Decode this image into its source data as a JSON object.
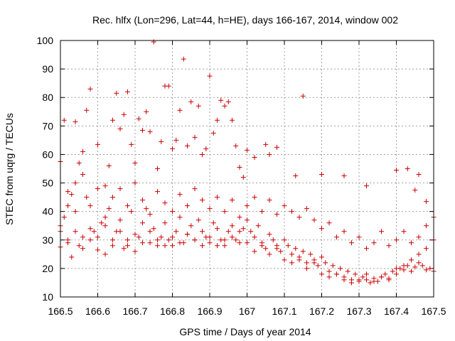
{
  "chart_data": {
    "type": "scatter",
    "title": "Rec. hlfx (Lon=296, Lat=44, h=HE), days 166-167, 2014, window 002",
    "xlabel": "GPS time / Days of year 2014",
    "ylabel": "STEC from uqrg / TECUs",
    "xlim": [
      166.5,
      167.5
    ],
    "ylim": [
      10,
      100
    ],
    "xticks": [
      166.5,
      166.6,
      166.7,
      166.8,
      166.9,
      167,
      167.1,
      167.2,
      167.3,
      167.4,
      167.5
    ],
    "xtick_labels": [
      "166.5",
      "166.6",
      "166.7",
      "166.8",
      "166.9",
      "167",
      "167.1",
      "167.2",
      "167.3",
      "167.4",
      "167.5"
    ],
    "yticks": [
      10,
      20,
      30,
      40,
      50,
      60,
      70,
      80,
      90,
      100
    ],
    "ytick_labels": [
      "10",
      "20",
      "30",
      "40",
      "50",
      "60",
      "70",
      "80",
      "90",
      "100"
    ],
    "grid": true,
    "marker": "plus",
    "color": "#cc0000",
    "series": [
      {
        "points": [
          [
            166.5,
            57.5
          ],
          [
            166.51,
            72
          ],
          [
            166.52,
            47
          ],
          [
            166.53,
            46
          ],
          [
            166.54,
            71.5
          ],
          [
            166.55,
            57
          ],
          [
            166.56,
            61
          ],
          [
            166.57,
            75.5
          ],
          [
            166.58,
            83
          ],
          [
            166.6,
            63.5
          ],
          [
            166.62,
            49
          ],
          [
            166.63,
            56
          ],
          [
            166.64,
            72
          ],
          [
            166.65,
            81.5
          ],
          [
            166.66,
            69
          ],
          [
            166.67,
            74
          ],
          [
            166.68,
            82
          ],
          [
            166.69,
            63.5
          ],
          [
            166.7,
            57
          ],
          [
            166.71,
            72.5
          ],
          [
            166.72,
            68.5
          ],
          [
            166.73,
            75
          ],
          [
            166.74,
            68
          ],
          [
            166.75,
            99.5
          ],
          [
            166.76,
            55
          ],
          [
            166.77,
            64.5
          ],
          [
            166.78,
            84
          ],
          [
            166.79,
            84
          ],
          [
            166.8,
            62
          ],
          [
            166.81,
            65
          ],
          [
            166.82,
            75.5
          ],
          [
            166.83,
            93.5
          ],
          [
            166.84,
            63
          ],
          [
            166.85,
            78.5
          ],
          [
            166.86,
            66
          ],
          [
            166.87,
            77
          ],
          [
            166.88,
            60
          ],
          [
            166.89,
            62
          ],
          [
            166.9,
            87.5
          ],
          [
            166.91,
            67.5
          ],
          [
            166.92,
            72
          ],
          [
            166.93,
            79
          ],
          [
            166.94,
            77
          ],
          [
            166.95,
            78.5
          ],
          [
            166.96,
            72
          ],
          [
            166.97,
            63
          ],
          [
            166.98,
            55.5
          ],
          [
            166.99,
            52
          ],
          [
            167.0,
            61.5
          ],
          [
            167.02,
            59
          ],
          [
            167.05,
            63.5
          ],
          [
            167.06,
            60
          ],
          [
            167.08,
            62.5
          ],
          [
            167.13,
            52.5
          ],
          [
            167.15,
            80.5
          ],
          [
            167.2,
            53
          ],
          [
            167.26,
            52.5
          ],
          [
            167.32,
            49
          ],
          [
            167.4,
            54.5
          ],
          [
            167.43,
            55
          ],
          [
            167.45,
            47.5
          ],
          [
            167.46,
            53
          ],
          [
            167.48,
            43.5
          ],
          [
            166.5,
            33
          ],
          [
            166.5,
            27.5
          ],
          [
            166.51,
            38
          ],
          [
            166.52,
            29
          ],
          [
            166.53,
            24
          ],
          [
            166.54,
            40
          ],
          [
            166.55,
            28
          ],
          [
            166.56,
            31
          ],
          [
            166.57,
            45
          ],
          [
            166.58,
            30
          ],
          [
            166.59,
            33
          ],
          [
            166.6,
            26.5
          ],
          [
            166.61,
            36
          ],
          [
            166.62,
            25
          ],
          [
            166.63,
            41
          ],
          [
            166.64,
            28
          ],
          [
            166.65,
            33
          ],
          [
            166.66,
            37
          ],
          [
            166.67,
            27
          ],
          [
            166.68,
            30
          ],
          [
            166.69,
            40
          ],
          [
            166.7,
            26
          ],
          [
            166.71,
            31
          ],
          [
            166.72,
            36
          ],
          [
            166.73,
            41
          ],
          [
            166.74,
            29
          ],
          [
            166.75,
            34
          ],
          [
            166.76,
            28
          ],
          [
            166.77,
            31
          ],
          [
            166.78,
            36
          ],
          [
            166.79,
            30
          ],
          [
            166.8,
            28
          ],
          [
            166.81,
            33
          ],
          [
            166.82,
            38
          ],
          [
            166.83,
            29
          ],
          [
            166.84,
            32
          ],
          [
            166.85,
            35
          ],
          [
            166.86,
            30
          ],
          [
            166.87,
            37
          ],
          [
            166.88,
            33
          ],
          [
            166.89,
            31
          ],
          [
            166.9,
            29
          ],
          [
            166.91,
            36
          ],
          [
            166.92,
            34
          ],
          [
            166.93,
            30
          ],
          [
            166.94,
            28
          ],
          [
            166.95,
            33
          ],
          [
            166.96,
            35
          ],
          [
            166.97,
            30
          ],
          [
            166.98,
            29
          ],
          [
            166.99,
            34
          ],
          [
            167.0,
            37
          ],
          [
            167.01,
            33
          ],
          [
            167.02,
            31
          ],
          [
            167.03,
            35
          ],
          [
            167.04,
            29
          ],
          [
            167.05,
            27
          ],
          [
            167.06,
            32
          ],
          [
            167.07,
            30
          ],
          [
            167.08,
            28
          ],
          [
            167.09,
            26
          ],
          [
            167.1,
            30
          ],
          [
            167.11,
            28
          ],
          [
            167.12,
            25
          ],
          [
            167.13,
            27
          ],
          [
            167.14,
            24
          ],
          [
            167.15,
            26
          ],
          [
            167.16,
            22
          ],
          [
            167.17,
            25
          ],
          [
            167.18,
            23
          ],
          [
            167.19,
            21
          ],
          [
            167.2,
            24
          ],
          [
            167.21,
            22
          ],
          [
            167.22,
            19
          ],
          [
            167.23,
            21
          ],
          [
            167.24,
            18
          ],
          [
            167.25,
            20
          ],
          [
            167.26,
            17
          ],
          [
            167.27,
            19
          ],
          [
            167.28,
            16
          ],
          [
            167.29,
            18
          ],
          [
            167.3,
            15.5
          ],
          [
            167.31,
            17
          ],
          [
            167.32,
            16
          ],
          [
            167.33,
            15
          ],
          [
            167.34,
            16.5
          ],
          [
            167.35,
            15.5
          ],
          [
            167.36,
            17
          ],
          [
            167.37,
            18
          ],
          [
            167.38,
            16.5
          ],
          [
            167.39,
            19
          ],
          [
            167.4,
            18
          ],
          [
            167.41,
            20
          ],
          [
            167.42,
            19.5
          ],
          [
            167.43,
            21
          ],
          [
            167.44,
            19
          ],
          [
            167.45,
            20.5
          ],
          [
            167.46,
            22
          ],
          [
            167.47,
            21
          ],
          [
            167.48,
            19.5
          ],
          [
            167.49,
            20
          ],
          [
            167.5,
            19
          ],
          [
            166.52,
            42
          ],
          [
            166.54,
            50
          ],
          [
            166.56,
            53
          ],
          [
            166.58,
            42
          ],
          [
            166.6,
            48
          ],
          [
            166.62,
            38
          ],
          [
            166.64,
            45
          ],
          [
            166.66,
            48
          ],
          [
            166.68,
            42
          ],
          [
            166.7,
            50
          ],
          [
            166.72,
            44
          ],
          [
            166.74,
            39
          ],
          [
            166.76,
            47
          ],
          [
            166.78,
            43
          ],
          [
            166.8,
            40
          ],
          [
            166.82,
            46
          ],
          [
            166.84,
            42
          ],
          [
            166.86,
            48
          ],
          [
            166.88,
            44
          ],
          [
            166.9,
            41
          ],
          [
            166.92,
            45
          ],
          [
            166.94,
            40
          ],
          [
            166.96,
            44
          ],
          [
            166.98,
            38
          ],
          [
            167.0,
            42
          ],
          [
            167.02,
            45
          ],
          [
            167.04,
            40
          ],
          [
            167.06,
            44
          ],
          [
            167.08,
            39
          ],
          [
            167.1,
            42
          ],
          [
            167.12,
            40
          ],
          [
            167.14,
            38
          ],
          [
            167.16,
            41
          ],
          [
            167.18,
            37
          ],
          [
            167.2,
            34
          ],
          [
            167.22,
            36
          ],
          [
            167.24,
            31
          ],
          [
            167.26,
            33
          ],
          [
            167.28,
            29
          ],
          [
            167.3,
            31
          ],
          [
            167.32,
            27
          ],
          [
            167.34,
            29
          ],
          [
            167.36,
            33
          ],
          [
            167.38,
            28
          ],
          [
            167.4,
            30
          ],
          [
            167.42,
            33
          ],
          [
            167.44,
            29
          ],
          [
            167.46,
            31
          ],
          [
            167.48,
            35
          ],
          [
            167.5,
            38
          ],
          [
            166.5,
            35
          ],
          [
            166.52,
            30
          ],
          [
            166.54,
            33
          ],
          [
            166.56,
            27
          ],
          [
            166.58,
            34
          ],
          [
            166.6,
            31
          ],
          [
            166.62,
            35
          ],
          [
            166.64,
            30
          ],
          [
            166.66,
            33
          ],
          [
            166.68,
            28
          ],
          [
            166.7,
            32
          ],
          [
            166.72,
            29
          ],
          [
            166.74,
            33
          ],
          [
            166.76,
            30
          ],
          [
            166.78,
            28
          ],
          [
            166.8,
            31
          ],
          [
            166.82,
            29
          ],
          [
            166.84,
            32
          ],
          [
            166.86,
            30
          ],
          [
            166.88,
            28
          ],
          [
            166.9,
            31
          ],
          [
            166.92,
            28
          ],
          [
            166.94,
            30
          ],
          [
            166.96,
            31
          ],
          [
            166.98,
            33
          ],
          [
            167.0,
            29
          ],
          [
            167.02,
            26
          ],
          [
            167.04,
            28
          ],
          [
            167.06,
            25
          ],
          [
            167.08,
            27
          ],
          [
            167.1,
            23
          ],
          [
            167.12,
            22
          ],
          [
            167.14,
            23
          ],
          [
            167.16,
            20
          ],
          [
            167.18,
            22
          ],
          [
            167.2,
            18
          ],
          [
            167.22,
            17
          ],
          [
            167.24,
            18
          ],
          [
            167.26,
            16
          ],
          [
            167.28,
            15
          ],
          [
            167.3,
            16
          ],
          [
            167.32,
            18
          ],
          [
            167.34,
            15.5
          ],
          [
            167.36,
            17
          ],
          [
            167.38,
            16
          ],
          [
            167.4,
            20
          ],
          [
            167.42,
            21
          ],
          [
            167.44,
            23
          ],
          [
            167.46,
            25
          ],
          [
            167.48,
            27
          ],
          [
            167.5,
            30
          ]
        ]
      }
    ]
  }
}
